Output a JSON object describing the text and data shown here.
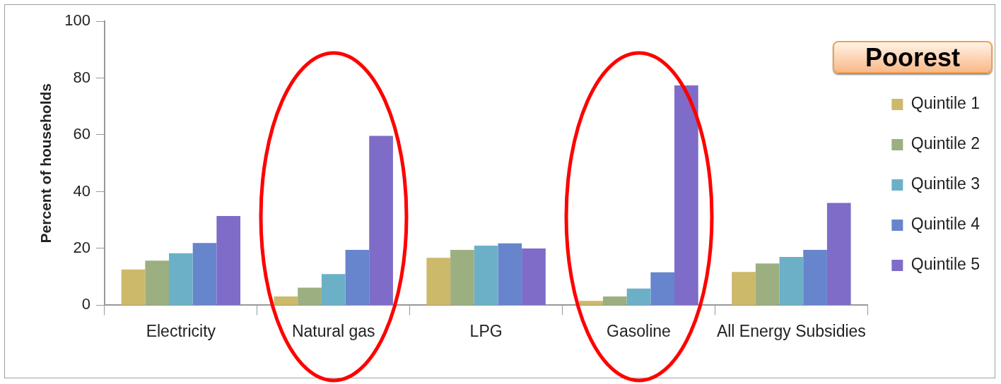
{
  "chart_data": {
    "type": "bar",
    "ylabel": "Percent of households",
    "categories": [
      "Electricity",
      "Natural gas",
      "LPG",
      "Gasoline",
      "All Energy Subsidies"
    ],
    "series": [
      {
        "name": "Quintile 1",
        "color": "#cdb96a",
        "values": [
          12.6,
          3.1,
          16.7,
          1.5,
          11.7
        ]
      },
      {
        "name": "Quintile 2",
        "color": "#9baf80",
        "values": [
          15.7,
          6.2,
          19.5,
          3.1,
          14.7
        ]
      },
      {
        "name": "Quintile 3",
        "color": "#6cb0c8",
        "values": [
          18.3,
          11,
          21,
          5.9,
          17
        ]
      },
      {
        "name": "Quintile 4",
        "color": "#6685cc",
        "values": [
          21.9,
          19.5,
          21.8,
          11.6,
          19.5
        ]
      },
      {
        "name": "Quintile 5",
        "color": "#7e6cc8",
        "values": [
          31.4,
          59.6,
          20,
          77.4,
          36
        ]
      }
    ],
    "ylim": [
      0,
      100
    ],
    "yticks": [
      0,
      20,
      40,
      60,
      80,
      100
    ],
    "grid": false,
    "legend": "right",
    "annotations": [
      "Poorest"
    ]
  }
}
